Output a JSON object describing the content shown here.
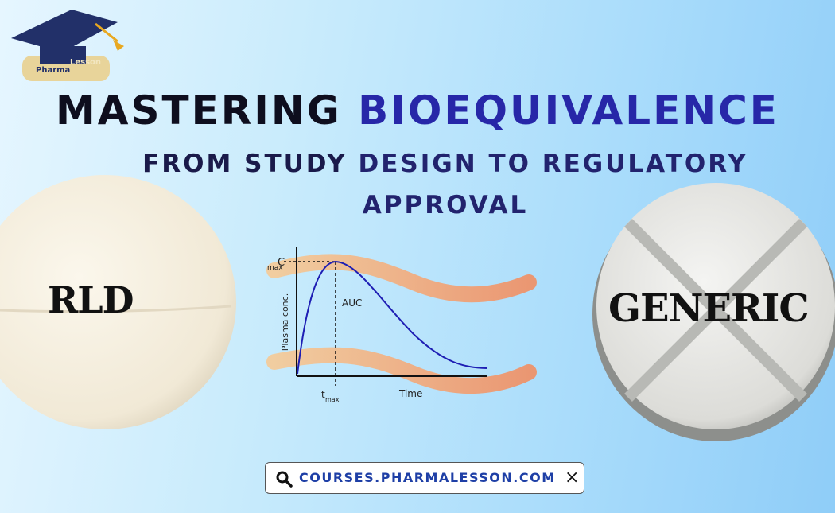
{
  "logo": {
    "line1": "Pharma",
    "line2": "Lesson"
  },
  "header": {
    "title_part1": "MASTERING",
    "title_part2": "BIOEQUIVALENCE",
    "subtitle_part1": "FROM STUDY",
    "subtitle_part2": "DESIGN TO REGULATORY APPROVAL"
  },
  "tablets": {
    "left": "RLD",
    "right": "GENERIC"
  },
  "graph": {
    "y_label": "Plasma conc.",
    "cmax_main": "C",
    "cmax_sub": "max",
    "auc": "AUC",
    "tmax_main": "t",
    "tmax_sub": "max",
    "x_label": "Time"
  },
  "search_bar": {
    "text": "COURSES.PHARMALESSON.COM",
    "close": "×"
  }
}
